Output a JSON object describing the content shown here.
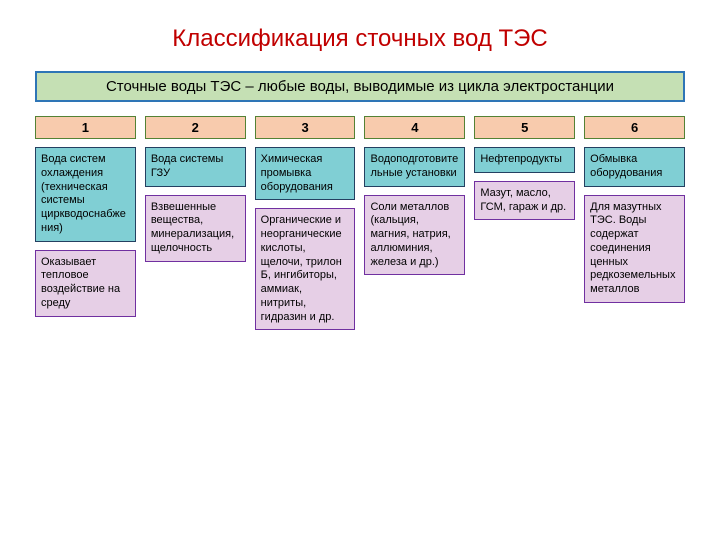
{
  "colors": {
    "title": "#c00000",
    "banner_bg": "#c5e0b4",
    "banner_border": "#2e75b6",
    "banner_text": "#000000",
    "num_bg": "#f8cbad",
    "num_border": "#548235",
    "num_text": "#000000",
    "teal_bg": "#80cfd4",
    "teal_border": "#244061",
    "teal_text": "#000000",
    "pink_bg": "#e6cfe6",
    "pink_border": "#7030a0",
    "pink_text": "#000000"
  },
  "title": "Классификация сточных вод ТЭС",
  "banner": "Сточные воды ТЭС – любые воды, выводимые из цикла электростанции",
  "columns": [
    {
      "num": "1",
      "teal": "Вода систем охлаждения (техническая системы циркводоснабжения)",
      "pink": "Оказывает тепловое воздействие на среду"
    },
    {
      "num": "2",
      "teal": "Вода системы ГЗУ",
      "pink": "Взвешенные вещества, минерализация, щелочность"
    },
    {
      "num": "3",
      "teal": "Химическая промывка оборудования",
      "pink": "Органические и неорганические кислоты, щелочи, трилон Б, ингибиторы, аммиак, нитриты, гидразин и др."
    },
    {
      "num": "4",
      "teal": "Водоподготовительные установки",
      "pink": "Соли металлов (кальция, магния, натрия, аллюминия, железа и др.)"
    },
    {
      "num": "5",
      "teal": "Нефтепродукты",
      "pink": "Мазут, масло, ГСМ, гараж и др."
    },
    {
      "num": "6",
      "teal": "Обмывка оборудования",
      "pink": "Для мазутных ТЭС. Воды содержат соединения ценных редкоземельных металлов"
    }
  ]
}
